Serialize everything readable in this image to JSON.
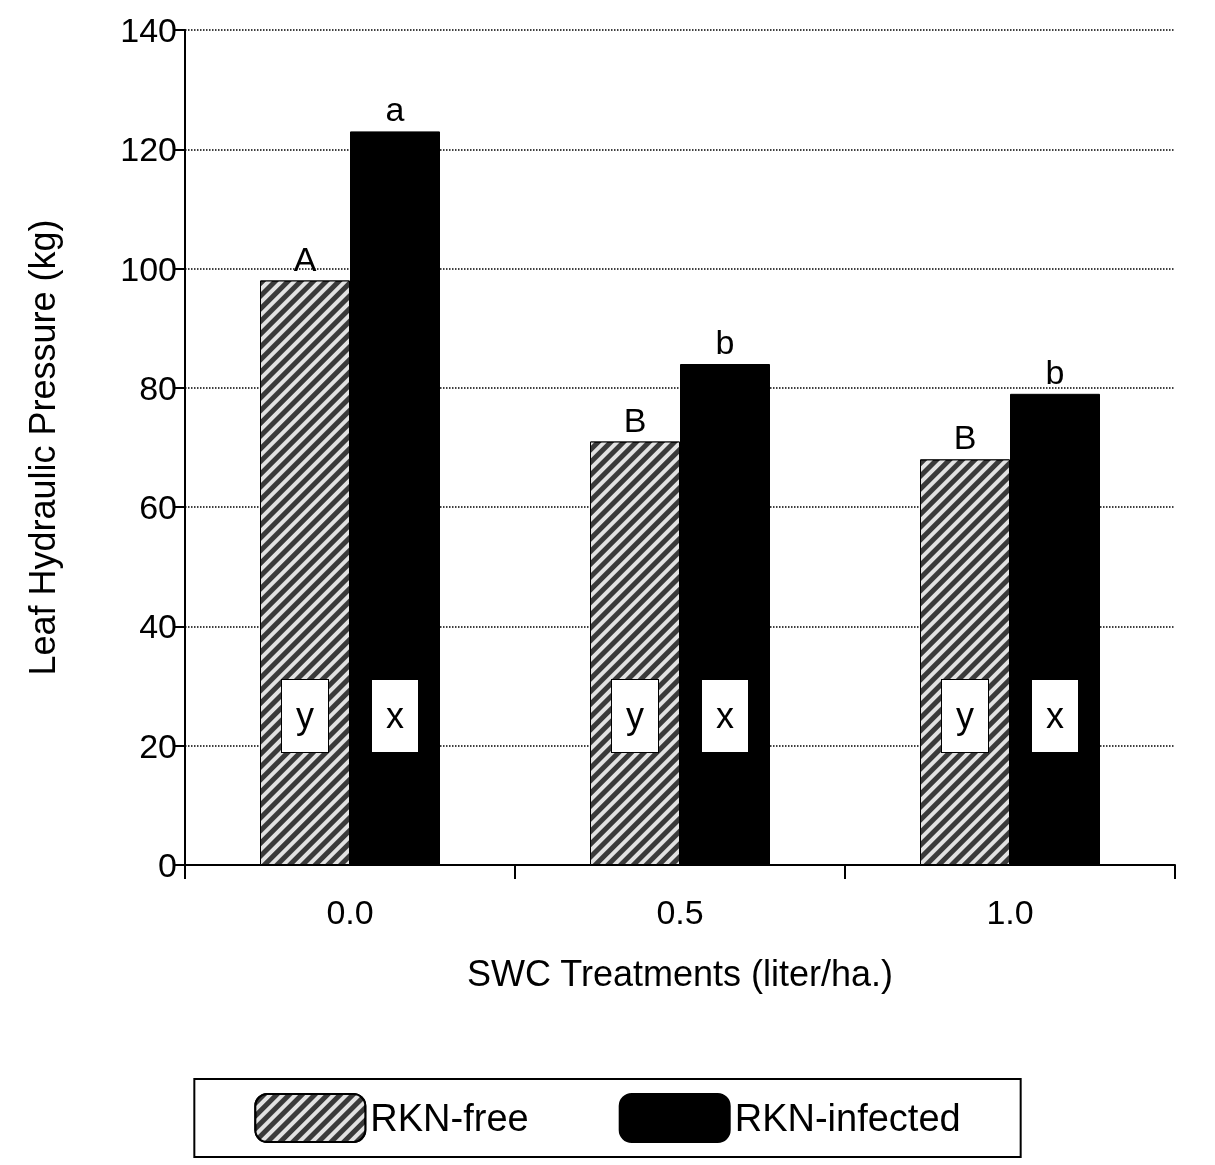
{
  "chart_data": {
    "type": "bar",
    "xlabel": "SWC Treatments (liter/ha.)",
    "ylabel": "Leaf Hydraulic Pressure (kg)",
    "categories": [
      "0.0",
      "0.5",
      "1.0"
    ],
    "series": [
      {
        "name": "RKN-free",
        "color": "#3a3a3a",
        "values": [
          98,
          71,
          68
        ],
        "value_labels": [
          "A",
          "B",
          "B"
        ]
      },
      {
        "name": "RKN-infected",
        "color": "#000000",
        "values": [
          123,
          84,
          79
        ],
        "value_labels": [
          "a",
          "b",
          "b"
        ]
      }
    ],
    "ylim": [
      0,
      140
    ],
    "yticks": [
      0,
      20,
      40,
      60,
      80,
      100,
      120,
      140
    ],
    "grid": "y",
    "legend": "bottom",
    "annotations": [
      {
        "text": "y",
        "x": "0.0",
        "y": 25
      },
      {
        "text": "x",
        "x": "0.0",
        "y": 25
      },
      {
        "text": "y",
        "x": "0.5",
        "y": 25
      },
      {
        "text": "x",
        "x": "0.5",
        "y": 25
      },
      {
        "text": "y",
        "x": "1.0",
        "y": 25
      },
      {
        "text": "x",
        "x": "1.0",
        "y": 25
      }
    ]
  }
}
